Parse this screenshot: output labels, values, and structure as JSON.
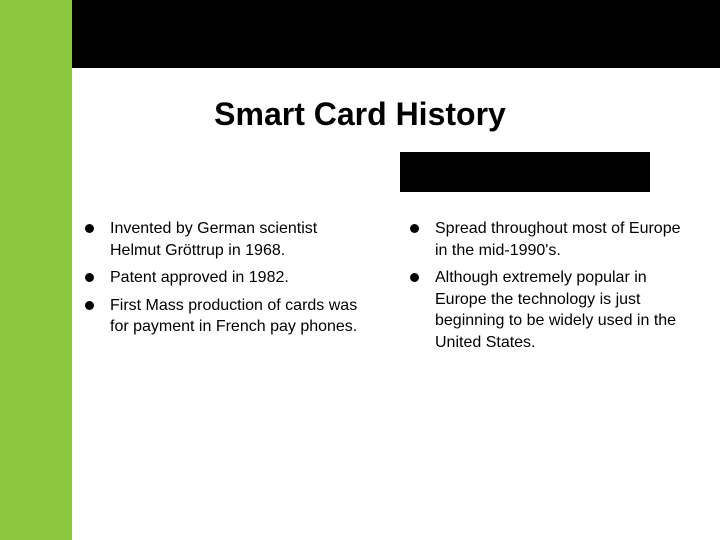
{
  "colors": {
    "green": "#8cc63f",
    "black": "#000000",
    "white": "#ffffff"
  },
  "title": "Smart Card History",
  "leftColumn": [
    "Invented by German scientist Helmut Gröttrup in 1968.",
    "Patent approved in 1982.",
    "First Mass production of cards was for payment in French pay phones."
  ],
  "rightColumn": [
    "Spread throughout most of Europe in the mid-1990's.",
    "Although extremely popular in Europe the technology is just beginning to be widely used in the United States."
  ]
}
